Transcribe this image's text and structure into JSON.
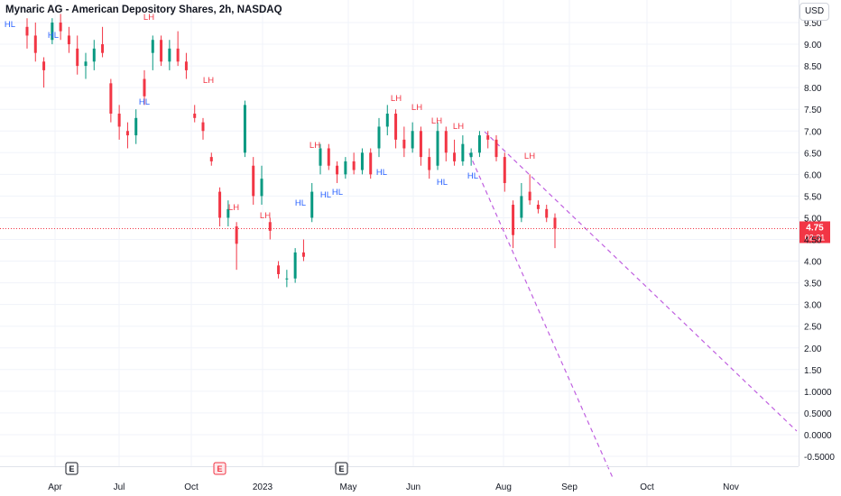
{
  "header": {
    "title": "Mynaric AG - American Depository Shares, 2h, NASDAQ",
    "currency": "USD"
  },
  "price_axis": {
    "ticks": [
      "9.50",
      "9.00",
      "8.50",
      "8.00",
      "7.50",
      "7.00",
      "6.50",
      "6.00",
      "5.50",
      "5.00",
      "4.50",
      "4.00",
      "3.50",
      "3.00",
      "2.50",
      "2.00",
      "1.50",
      "1.0000",
      "0.5000",
      "0.0000",
      "-0.5000"
    ]
  },
  "time_axis": {
    "ticks": [
      "Apr",
      "Jul",
      "Oct",
      "2023",
      "May",
      "Jun",
      "Aug",
      "Sep",
      "Oct",
      "Nov"
    ]
  },
  "last_price": {
    "value": "4.75",
    "countdown": "02:31",
    "color": "#f23645"
  },
  "earnings_markers": [
    "E",
    "E",
    "E"
  ],
  "colors": {
    "up": "#089981",
    "down": "#f23645",
    "hl": "#2962ff",
    "lh": "#f23645",
    "trend": "#c060e0",
    "grid": "#f0f3fa"
  },
  "chart_data": {
    "type": "candlestick",
    "title": "Mynaric AG - American Depository Shares, 2h, NASDAQ",
    "ylim": [
      -0.5,
      9.5
    ],
    "swing_labels": [
      {
        "text": "HL",
        "price": 9.15,
        "date": "Mar"
      },
      {
        "text": "HL",
        "price": 8.9,
        "date": "Apr"
      },
      {
        "text": "LH",
        "price": 9.4,
        "date": "Jul"
      },
      {
        "text": "HL",
        "price": 7.4,
        "date": "Aug"
      },
      {
        "text": "LH",
        "price": 8.1,
        "date": "Oct"
      },
      {
        "text": "LH",
        "price": 5.1,
        "date": "Nov"
      },
      {
        "text": "LH",
        "price": 5.0,
        "date": "Dec"
      },
      {
        "text": "HL",
        "price": 5.15,
        "date": "Feb"
      },
      {
        "text": "LH",
        "price": 6.6,
        "date": "Mar"
      },
      {
        "text": "HL",
        "price": 5.4,
        "date": "Mar"
      },
      {
        "text": "HL",
        "price": 5.5,
        "date": "Apr"
      },
      {
        "text": "HL",
        "price": 6.0,
        "date": "May"
      },
      {
        "text": "LH",
        "price": 7.6,
        "date": "May"
      },
      {
        "text": "LH",
        "price": 7.4,
        "date": "Jun"
      },
      {
        "text": "LH",
        "price": 7.1,
        "date": "Jun"
      },
      {
        "text": "HL",
        "price": 5.8,
        "date": "Jun"
      },
      {
        "text": "LH",
        "price": 7.0,
        "date": "Jul"
      },
      {
        "text": "HL",
        "price": 5.95,
        "date": "Jul"
      },
      {
        "text": "LH",
        "price": 6.35,
        "date": "Aug"
      }
    ],
    "series": [
      {
        "date": "Mar 2022",
        "open": 9.4,
        "high": 9.6,
        "low": 8.9,
        "close": 9.2
      },
      {
        "date": "Mar 2022",
        "open": 9.2,
        "high": 9.5,
        "low": 8.6,
        "close": 8.8
      },
      {
        "date": "Mar 2022",
        "open": 8.6,
        "high": 8.7,
        "low": 8.0,
        "close": 8.4
      },
      {
        "date": "Apr 2022",
        "open": 9.1,
        "high": 9.6,
        "low": 9.0,
        "close": 9.5
      },
      {
        "date": "Apr 2022",
        "open": 9.5,
        "high": 9.7,
        "low": 9.1,
        "close": 9.3
      },
      {
        "date": "Apr 2022",
        "open": 9.2,
        "high": 9.4,
        "low": 8.8,
        "close": 9.0
      },
      {
        "date": "May 2022",
        "open": 8.9,
        "high": 9.2,
        "low": 8.3,
        "close": 8.5
      },
      {
        "date": "May 2022",
        "open": 8.5,
        "high": 8.8,
        "low": 8.2,
        "close": 8.6
      },
      {
        "date": "May 2022",
        "open": 8.6,
        "high": 9.1,
        "low": 8.4,
        "close": 8.9
      },
      {
        "date": "Jun 2022",
        "open": 9.0,
        "high": 9.4,
        "low": 8.7,
        "close": 8.8
      },
      {
        "date": "Jun 2022",
        "open": 8.1,
        "high": 8.2,
        "low": 7.2,
        "close": 7.4
      },
      {
        "date": "Jun 2022",
        "open": 7.4,
        "high": 7.6,
        "low": 6.8,
        "close": 7.1
      },
      {
        "date": "Jun 2022",
        "open": 7.0,
        "high": 7.2,
        "low": 6.6,
        "close": 6.9
      },
      {
        "date": "Jul 2022",
        "open": 6.9,
        "high": 7.5,
        "low": 6.7,
        "close": 7.3
      },
      {
        "date": "Jul 2022",
        "open": 8.2,
        "high": 8.4,
        "low": 7.6,
        "close": 7.8
      },
      {
        "date": "Jul 2022",
        "open": 8.8,
        "high": 9.2,
        "low": 8.4,
        "close": 9.1
      },
      {
        "date": "Jul 2022",
        "open": 9.1,
        "high": 9.2,
        "low": 8.5,
        "close": 8.6
      },
      {
        "date": "Jul 2022",
        "open": 8.6,
        "high": 9.1,
        "low": 8.4,
        "close": 8.9
      },
      {
        "date": "Aug 2022",
        "open": 8.9,
        "high": 9.3,
        "low": 8.5,
        "close": 8.6
      },
      {
        "date": "Aug 2022",
        "open": 8.6,
        "high": 8.8,
        "low": 8.2,
        "close": 8.4
      },
      {
        "date": "Aug 2022",
        "open": 7.4,
        "high": 7.6,
        "low": 7.2,
        "close": 7.3
      },
      {
        "date": "Sep 2022",
        "open": 7.2,
        "high": 7.3,
        "low": 6.8,
        "close": 7.0
      },
      {
        "date": "Sep 2022",
        "open": 6.4,
        "high": 6.5,
        "low": 6.2,
        "close": 6.3
      },
      {
        "date": "Sep 2022",
        "open": 5.6,
        "high": 5.7,
        "low": 4.8,
        "close": 5.0
      },
      {
        "date": "Oct 2022",
        "open": 5.0,
        "high": 5.4,
        "low": 4.8,
        "close": 5.2
      },
      {
        "date": "Oct 2022",
        "open": 4.8,
        "high": 4.9,
        "low": 3.8,
        "close": 4.4
      },
      {
        "date": "Oct 2022",
        "open": 6.5,
        "high": 7.7,
        "low": 6.4,
        "close": 7.6
      },
      {
        "date": "Oct 2022",
        "open": 6.2,
        "high": 6.4,
        "low": 5.3,
        "close": 5.5
      },
      {
        "date": "Nov 2022",
        "open": 5.5,
        "high": 6.2,
        "low": 5.3,
        "close": 5.9
      },
      {
        "date": "Nov 2022",
        "open": 4.9,
        "high": 5.0,
        "low": 4.5,
        "close": 4.7
      },
      {
        "date": "Dec 2022",
        "open": 3.9,
        "high": 4.0,
        "low": 3.6,
        "close": 3.7
      },
      {
        "date": "Dec 2022",
        "open": 3.6,
        "high": 3.8,
        "low": 3.4,
        "close": 3.6
      },
      {
        "date": "Jan 2023",
        "open": 3.6,
        "high": 4.3,
        "low": 3.5,
        "close": 4.2
      },
      {
        "date": "Jan 2023",
        "open": 4.2,
        "high": 4.5,
        "low": 4.0,
        "close": 4.1
      },
      {
        "date": "Jan 2023",
        "open": 5.0,
        "high": 5.8,
        "low": 4.9,
        "close": 5.6
      },
      {
        "date": "Feb 2023",
        "open": 6.2,
        "high": 6.7,
        "low": 6.0,
        "close": 6.6
      },
      {
        "date": "Feb 2023",
        "open": 6.6,
        "high": 6.7,
        "low": 6.1,
        "close": 6.2
      },
      {
        "date": "Mar 2023",
        "open": 6.2,
        "high": 6.3,
        "low": 5.8,
        "close": 6.0
      },
      {
        "date": "Mar 2023",
        "open": 6.0,
        "high": 6.4,
        "low": 5.9,
        "close": 6.3
      },
      {
        "date": "Apr 2023",
        "open": 6.3,
        "high": 6.5,
        "low": 6.0,
        "close": 6.1
      },
      {
        "date": "Apr 2023",
        "open": 6.1,
        "high": 6.6,
        "low": 6.0,
        "close": 6.5
      },
      {
        "date": "Apr 2023",
        "open": 6.5,
        "high": 6.6,
        "low": 5.9,
        "close": 6.0
      },
      {
        "date": "May 2023",
        "open": 6.6,
        "high": 7.3,
        "low": 6.4,
        "close": 7.1
      },
      {
        "date": "May 2023",
        "open": 7.1,
        "high": 7.6,
        "low": 6.9,
        "close": 7.4
      },
      {
        "date": "May 2023",
        "open": 7.4,
        "high": 7.5,
        "low": 6.6,
        "close": 6.8
      },
      {
        "date": "May 2023",
        "open": 6.8,
        "high": 7.1,
        "low": 6.4,
        "close": 6.6
      },
      {
        "date": "May 2023",
        "open": 6.6,
        "high": 7.2,
        "low": 6.5,
        "close": 7.0
      },
      {
        "date": "Jun 2023",
        "open": 7.0,
        "high": 7.1,
        "low": 6.2,
        "close": 6.4
      },
      {
        "date": "Jun 2023",
        "open": 6.4,
        "high": 6.6,
        "low": 5.9,
        "close": 6.1
      },
      {
        "date": "Jun 2023",
        "open": 6.2,
        "high": 7.2,
        "low": 6.1,
        "close": 7.0
      },
      {
        "date": "Jun 2023",
        "open": 7.0,
        "high": 7.1,
        "low": 6.3,
        "close": 6.5
      },
      {
        "date": "Jun 2023",
        "open": 6.5,
        "high": 6.8,
        "low": 6.2,
        "close": 6.3
      },
      {
        "date": "Jul 2023",
        "open": 6.3,
        "high": 6.9,
        "low": 6.2,
        "close": 6.7
      },
      {
        "date": "Jul 2023",
        "open": 6.4,
        "high": 6.6,
        "low": 6.2,
        "close": 6.5
      },
      {
        "date": "Jul 2023",
        "open": 6.5,
        "high": 7.0,
        "low": 6.4,
        "close": 6.9
      },
      {
        "date": "Jul 2023",
        "open": 6.9,
        "high": 7.0,
        "low": 6.6,
        "close": 6.8
      },
      {
        "date": "Jul 2023",
        "open": 6.8,
        "high": 6.9,
        "low": 6.3,
        "close": 6.4
      },
      {
        "date": "Jul 2023",
        "open": 6.4,
        "high": 6.5,
        "low": 5.6,
        "close": 5.8
      },
      {
        "date": "Aug 2023",
        "open": 5.3,
        "high": 5.4,
        "low": 4.3,
        "close": 4.6
      },
      {
        "date": "Aug 2023",
        "open": 5.0,
        "high": 5.8,
        "low": 4.9,
        "close": 5.5
      },
      {
        "date": "Aug 2023",
        "open": 5.6,
        "high": 6.0,
        "low": 5.3,
        "close": 5.4
      },
      {
        "date": "Aug 2023",
        "open": 5.3,
        "high": 5.4,
        "low": 5.1,
        "close": 5.2
      },
      {
        "date": "Aug 2023",
        "open": 5.2,
        "high": 5.3,
        "low": 4.9,
        "close": 5.0
      },
      {
        "date": "Aug 2023",
        "open": 5.0,
        "high": 5.1,
        "low": 4.3,
        "close": 4.75
      }
    ]
  }
}
